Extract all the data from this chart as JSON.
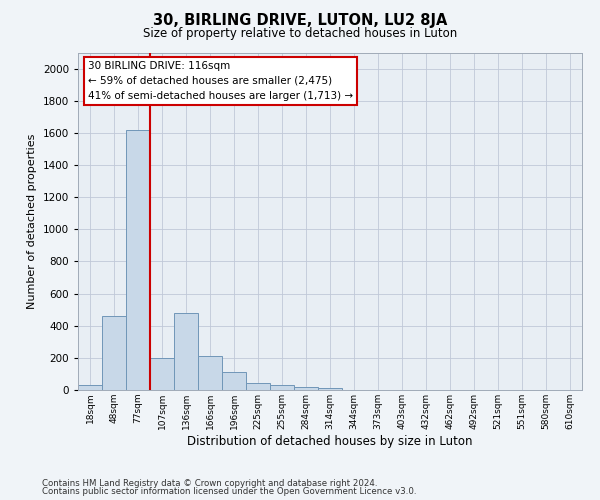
{
  "title": "30, BIRLING DRIVE, LUTON, LU2 8JA",
  "subtitle": "Size of property relative to detached houses in Luton",
  "xlabel": "Distribution of detached houses by size in Luton",
  "ylabel": "Number of detached properties",
  "footnote1": "Contains HM Land Registry data © Crown copyright and database right 2024.",
  "footnote2": "Contains public sector information licensed under the Open Government Licence v3.0.",
  "categories": [
    "18sqm",
    "48sqm",
    "77sqm",
    "107sqm",
    "136sqm",
    "166sqm",
    "196sqm",
    "225sqm",
    "255sqm",
    "284sqm",
    "314sqm",
    "344sqm",
    "373sqm",
    "403sqm",
    "432sqm",
    "462sqm",
    "492sqm",
    "521sqm",
    "551sqm",
    "580sqm",
    "610sqm"
  ],
  "values": [
    30,
    460,
    1620,
    200,
    480,
    210,
    115,
    45,
    30,
    20,
    10,
    0,
    0,
    0,
    0,
    0,
    0,
    0,
    0,
    0,
    0
  ],
  "bar_color": "#c8d8e8",
  "bar_edge_color": "#7096b8",
  "vline_color": "#cc0000",
  "vline_label": "30 BIRLING DRIVE: 116sqm",
  "annotation_line1": "← 59% of detached houses are smaller (2,475)",
  "annotation_line2": "41% of semi-detached houses are larger (1,713) →",
  "annotation_box_color": "#ffffff",
  "annotation_box_edge": "#cc0000",
  "ylim": [
    0,
    2100
  ],
  "yticks": [
    0,
    200,
    400,
    600,
    800,
    1000,
    1200,
    1400,
    1600,
    1800,
    2000
  ],
  "grid_color": "#c0c8d8",
  "bg_color": "#e8eef4",
  "fig_bg_color": "#f0f4f8"
}
